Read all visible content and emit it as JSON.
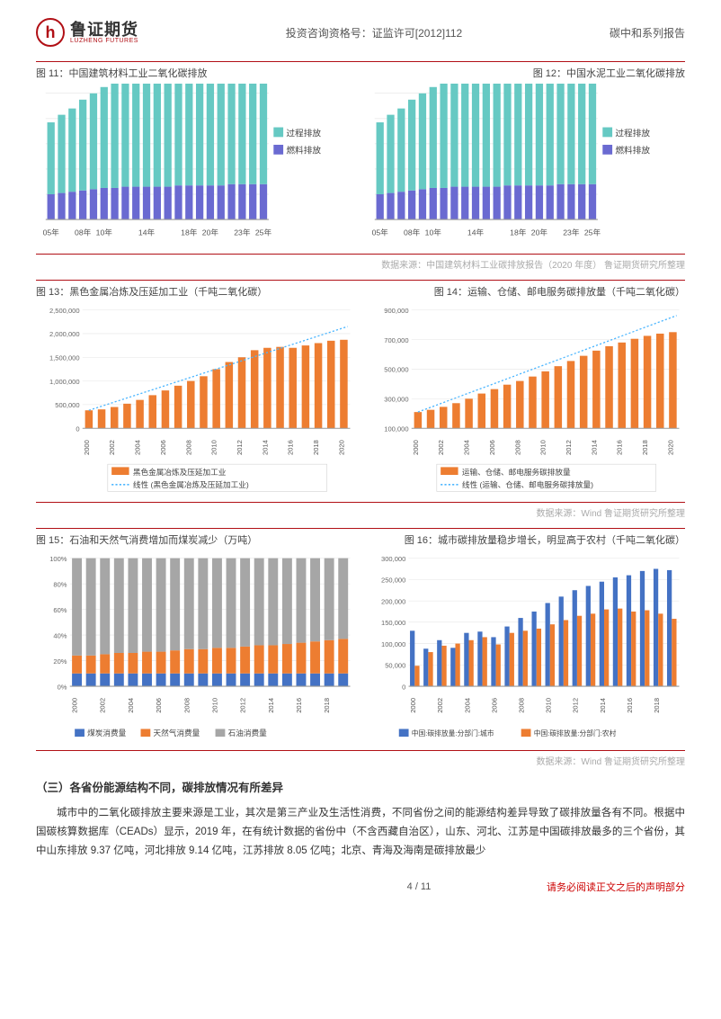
{
  "header": {
    "logo_cn": "鲁证期货",
    "logo_en": "LUZHENG FUTURES",
    "logo_mark": "h",
    "mid": "投资咨询资格号：证监许可[2012]112",
    "right": "碳中和系列报告"
  },
  "fig11": {
    "title": "图 11：中国建筑材料工业二氧化碳排放",
    "type": "stacked-bar",
    "x_labels": [
      "05年",
      "",
      "",
      "08年",
      "",
      "10年",
      "",
      "",
      "",
      "14年",
      "",
      "",
      "",
      "18年",
      "",
      "20年",
      "",
      "",
      "23年",
      "",
      "25年"
    ],
    "series": [
      {
        "name": "过程排放",
        "color": "#66c9c3",
        "values": [
          57,
          62,
          66,
          72,
          76,
          80,
          83,
          85,
          87,
          88,
          89,
          89,
          90,
          91,
          92,
          93,
          94,
          95,
          96,
          97,
          98
        ]
      },
      {
        "name": "燃料排放",
        "color": "#6a6ad1",
        "values": [
          20,
          21,
          22,
          23,
          24,
          25,
          25,
          26,
          26,
          26,
          26,
          26,
          27,
          27,
          27,
          27,
          27,
          28,
          28,
          28,
          28
        ]
      }
    ],
    "legend": [
      {
        "name": "过程排放",
        "color": "#66c9c3"
      },
      {
        "name": "燃料排放",
        "color": "#6a6ad1"
      }
    ],
    "grid_color": "#dcdcdc"
  },
  "fig12": {
    "title": "图 12：中国水泥工业二氧化碳排放",
    "type": "stacked-bar",
    "x_labels": [
      "05年",
      "",
      "",
      "08年",
      "",
      "10年",
      "",
      "",
      "",
      "14年",
      "",
      "",
      "",
      "18年",
      "",
      "20年",
      "",
      "",
      "23年",
      "",
      "25年"
    ],
    "series": [
      {
        "name": "过程排放",
        "color": "#66c9c3",
        "values": [
          57,
          62,
          66,
          72,
          76,
          80,
          83,
          85,
          87,
          88,
          89,
          89,
          90,
          91,
          92,
          93,
          94,
          95,
          96,
          97,
          98
        ]
      },
      {
        "name": "燃料排放",
        "color": "#6a6ad1",
        "values": [
          20,
          21,
          22,
          23,
          24,
          25,
          25,
          26,
          26,
          26,
          26,
          26,
          27,
          27,
          27,
          27,
          27,
          28,
          28,
          28,
          28
        ]
      }
    ],
    "legend": [
      {
        "name": "过程排放",
        "color": "#66c9c3"
      },
      {
        "name": "燃料排放",
        "color": "#6a6ad1"
      }
    ],
    "grid_color": "#dcdcdc"
  },
  "source11_12": "数据来源：中国建筑材料工业碳排放报告（2020 年度） 鲁证期货研究所整理",
  "fig13": {
    "title": "图 13：黑色金属冶炼及压延加工业（千吨二氧化碳）",
    "type": "bar-with-trend",
    "ylim": [
      0,
      2500000
    ],
    "ytick_step": 500000,
    "y_ticks": [
      "0",
      "500,000",
      "1,000,000",
      "1,500,000",
      "2,000,000",
      "2,500,000"
    ],
    "x_labels": [
      "2000",
      "2001",
      "2002",
      "2003",
      "2004",
      "2005",
      "2006",
      "2007",
      "2008",
      "2009",
      "2010",
      "2011",
      "2012",
      "2013",
      "2014",
      "2015",
      "2016",
      "2017",
      "2018",
      "2019",
      "2020"
    ],
    "values": [
      380000,
      400000,
      450000,
      520000,
      600000,
      700000,
      800000,
      900000,
      1000000,
      1100000,
      1250000,
      1400000,
      1500000,
      1650000,
      1700000,
      1720000,
      1700000,
      1750000,
      1800000,
      1850000,
      1870000
    ],
    "bar_color": "#ed7d31",
    "trend_color": "#4cb6ff",
    "legend_bar": "黑色金属冶炼及压延加工业",
    "legend_trend": "线性 (黑色金属冶炼及压延加工业)"
  },
  "fig14": {
    "title": "图 14：运输、仓储、邮电服务碳排放量（千吨二氧化碳）",
    "type": "bar-with-trend",
    "ylim": [
      100000,
      900000
    ],
    "ytick_step": 200000,
    "y_ticks": [
      "100,000",
      "300,000",
      "500,000",
      "700,000",
      "900,000"
    ],
    "x_labels": [
      "2000",
      "2001",
      "2002",
      "2003",
      "2004",
      "2005",
      "2006",
      "2007",
      "2008",
      "2009",
      "2010",
      "2011",
      "2012",
      "2013",
      "2014",
      "2015",
      "2016",
      "2017",
      "2018",
      "2019",
      "2020"
    ],
    "values": [
      210000,
      225000,
      245000,
      270000,
      300000,
      335000,
      365000,
      395000,
      420000,
      450000,
      485000,
      520000,
      555000,
      590000,
      625000,
      655000,
      680000,
      705000,
      725000,
      740000,
      750000
    ],
    "bar_color": "#ed7d31",
    "trend_color": "#4cb6ff",
    "legend_bar": "运输、仓储、邮电服务碳排放量",
    "legend_trend": "线性 (运输、仓储、邮电服务碳排放量)"
  },
  "source13_14": "数据来源：Wind 鲁证期货研究所整理",
  "fig15": {
    "title": "图 15：石油和天然气消费增加而煤炭减少（万吨）",
    "type": "stacked-100",
    "y_ticks": [
      "0%",
      "20%",
      "40%",
      "60%",
      "80%",
      "100%"
    ],
    "x_labels": [
      "2000",
      "2001",
      "2002",
      "2003",
      "2004",
      "2005",
      "2006",
      "2007",
      "2008",
      "2009",
      "2010",
      "2011",
      "2012",
      "2013",
      "2014",
      "2015",
      "2016",
      "2017",
      "2018",
      "2019"
    ],
    "series": [
      {
        "name": "石油消费量",
        "color": "#a6a6a6",
        "values": [
          76,
          76,
          75,
          74,
          74,
          73,
          73,
          72,
          71,
          71,
          70,
          70,
          69,
          68,
          68,
          67,
          66,
          65,
          64,
          63
        ]
      },
      {
        "name": "天然气消费量",
        "color": "#ed7d31",
        "values": [
          14,
          14,
          15,
          16,
          16,
          17,
          17,
          18,
          19,
          19,
          20,
          20,
          21,
          22,
          22,
          23,
          24,
          25,
          26,
          27
        ]
      },
      {
        "name": "煤炭消费量",
        "color": "#4472c4",
        "values": [
          10,
          10,
          10,
          10,
          10,
          10,
          10,
          10,
          10,
          10,
          10,
          10,
          10,
          10,
          10,
          10,
          10,
          10,
          10,
          10
        ]
      }
    ],
    "legend": [
      {
        "name": "煤炭消费量",
        "color": "#4472c4"
      },
      {
        "name": "天然气消费量",
        "color": "#ed7d31"
      },
      {
        "name": "石油消费量",
        "color": "#a6a6a6"
      }
    ]
  },
  "fig16": {
    "title": "图 16：城市碳排放量稳步增长，明显高于农村（千吨二氧化碳）",
    "type": "grouped-bar",
    "ylim": [
      0,
      300000
    ],
    "ytick_step": 50000,
    "y_ticks": [
      "0",
      "50,000",
      "100,000",
      "150,000",
      "200,000",
      "250,000",
      "300,000"
    ],
    "x_labels": [
      "2000",
      "2001",
      "2002",
      "2003",
      "2004",
      "2005",
      "2006",
      "2007",
      "2008",
      "2009",
      "2010",
      "2011",
      "2012",
      "2013",
      "2014",
      "2015",
      "2016",
      "2017",
      "2018",
      "2019"
    ],
    "series": [
      {
        "name": "中国:碳排放量:分部门:城市",
        "color": "#4472c4",
        "values": [
          130000,
          88000,
          108000,
          90000,
          125000,
          128000,
          115000,
          140000,
          160000,
          175000,
          195000,
          210000,
          225000,
          235000,
          245000,
          255000,
          260000,
          270000,
          275000,
          272000
        ]
      },
      {
        "name": "中国:碳排放量:分部门:农村",
        "color": "#ed7d31",
        "values": [
          48000,
          80000,
          95000,
          100000,
          108000,
          115000,
          98000,
          125000,
          130000,
          135000,
          145000,
          155000,
          165000,
          170000,
          180000,
          182000,
          175000,
          178000,
          170000,
          158000
        ]
      }
    ],
    "legend": [
      {
        "name": "中国:碳排放量:分部门:城市",
        "color": "#4472c4"
      },
      {
        "name": "中国:碳排放量:分部门:农村",
        "color": "#ed7d31"
      }
    ]
  },
  "source15_16": "数据来源：Wind 鲁证期货研究所整理",
  "heading": "（三）各省份能源结构不同，碳排放情况有所差异",
  "paragraph": "城市中的二氧化碳排放主要来源是工业，其次是第三产业及生活性消费，不同省份之间的能源结构差异导致了碳排放量各有不同。根据中国碳核算数据库（CEADs）显示，2019 年，在有统计数据的省份中（不含西藏自治区），山东、河北、江苏是中国碳排放最多的三个省份，其中山东排放 9.37 亿吨，河北排放 9.14 亿吨，江苏排放 8.05 亿吨；北京、青海及海南是碳排放最少",
  "footer": {
    "page": "4 / 11",
    "note": "请务必阅读正文之后的声明部分"
  }
}
